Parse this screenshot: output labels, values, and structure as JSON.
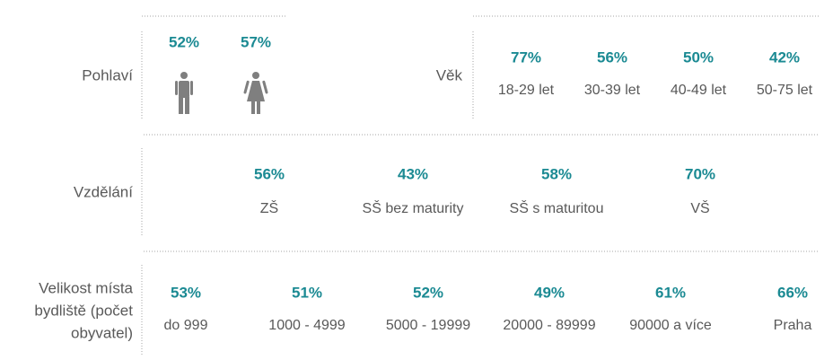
{
  "sections": [
    {
      "title": [
        "Pohlaví"
      ],
      "items": [
        {
          "value": "52%"
        },
        {
          "value": "57%"
        }
      ]
    },
    {
      "title": [
        "Věk"
      ],
      "items": [
        {
          "value": "77%",
          "label": "18-29 let"
        },
        {
          "value": "56%",
          "label": "30-39 let"
        },
        {
          "value": "50%",
          "label": "40-49 let"
        },
        {
          "value": "42%",
          "label": "50-75 let"
        }
      ]
    },
    {
      "title": [
        "Vzdělání"
      ],
      "items": [
        {
          "value": "56%",
          "label": "ZŠ"
        },
        {
          "value": "43%",
          "label": "SŠ bez maturity"
        },
        {
          "value": "58%",
          "label": "SŠ s maturitou"
        },
        {
          "value": "70%",
          "label": "VŠ"
        }
      ]
    },
    {
      "title": [
        "Velikost místa",
        "bydliště (počet",
        "obyvatel)"
      ],
      "items": [
        {
          "value": "53%",
          "label": "do 999"
        },
        {
          "value": "51%",
          "label": "1000 - 4999"
        },
        {
          "value": "52%",
          "label": "5000 - 19999"
        },
        {
          "value": "49%",
          "label": "20000 - 89999"
        },
        {
          "value": "61%",
          "label": "90000 a více"
        },
        {
          "value": "66%",
          "label": "Praha"
        }
      ]
    }
  ]
}
